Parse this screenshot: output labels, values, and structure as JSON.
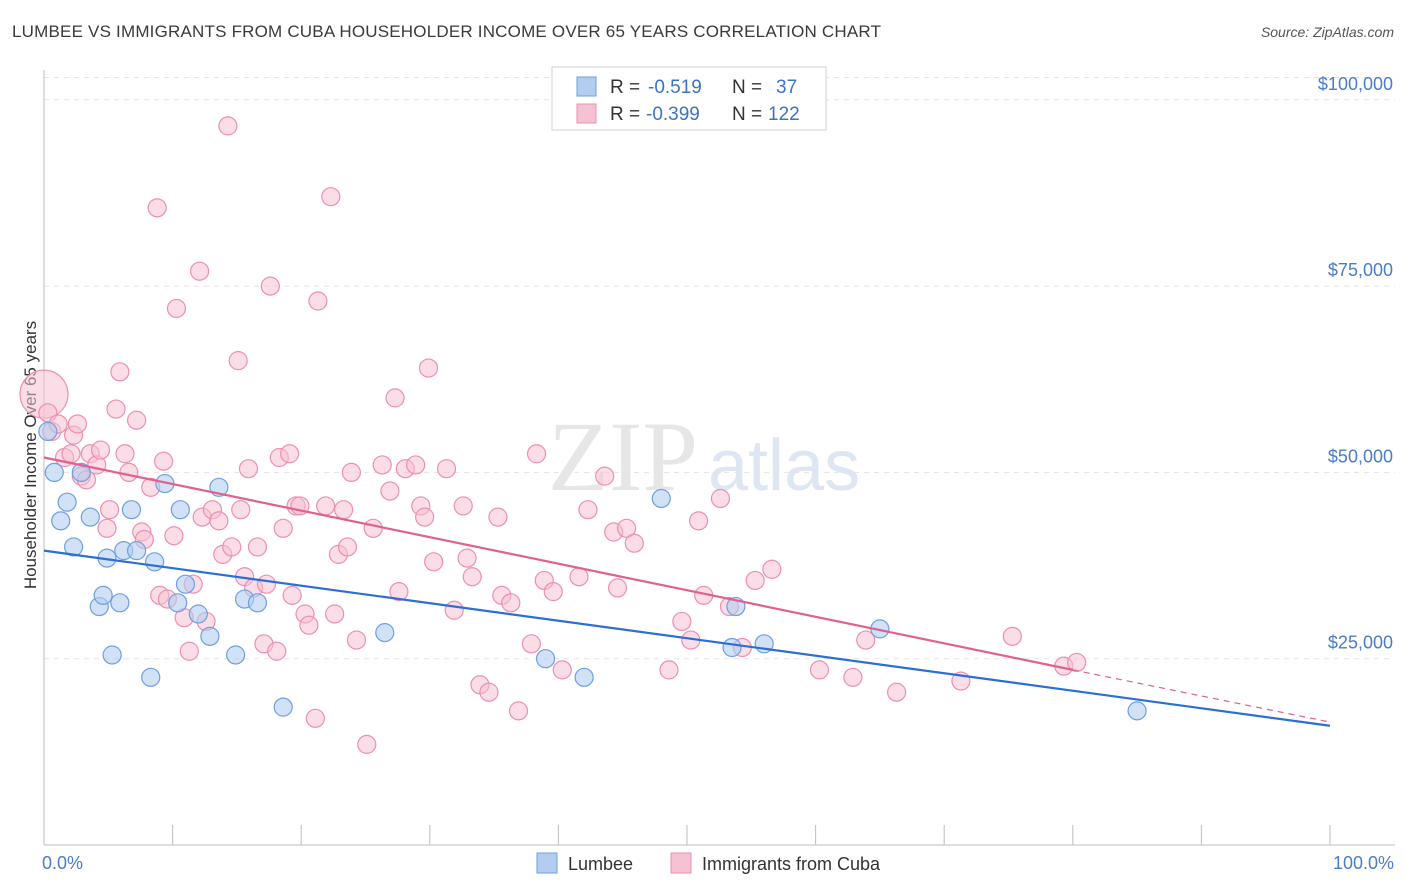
{
  "header": {
    "title": "LUMBEE VS IMMIGRANTS FROM CUBA HOUSEHOLDER INCOME OVER 65 YEARS CORRELATION CHART",
    "source": "Source: ZipAtlas.com"
  },
  "watermark": {
    "zip": "ZIP",
    "atlas": "atlas"
  },
  "legend": {
    "r_label": "R =",
    "n_label": "N =",
    "items": [
      {
        "r": "-0.519",
        "n": "37"
      },
      {
        "r": "-0.399",
        "n": "122"
      }
    ]
  },
  "chart_data": {
    "type": "scatter",
    "title": "LUMBEE VS IMMIGRANTS FROM CUBA HOUSEHOLDER INCOME OVER 65 YEARS CORRELATION CHART",
    "xlabel": "",
    "ylabel": "Householder Income Over 65 years",
    "xlim": [
      0,
      100
    ],
    "ylim": [
      0,
      104000
    ],
    "x_tick_labels": [
      "0.0%",
      "100.0%"
    ],
    "y_ticks": [
      25000,
      50000,
      75000,
      100000
    ],
    "y_tick_labels": [
      "$25,000",
      "$50,000",
      "$75,000",
      "$100,000"
    ],
    "grid": true,
    "legend_position": "top-center",
    "colors": {
      "lumbee_fill": "#b3cdf0",
      "lumbee_stroke": "#6f9fe0",
      "lumbee_line": "#2b6fd6",
      "cuba_fill": "#f6c1d2",
      "cuba_stroke": "#ec8fb0",
      "cuba_line": "#e0608f"
    },
    "series": [
      {
        "name": "Lumbee",
        "r": -0.519,
        "n": 37,
        "trend": {
          "x0": 0,
          "y0": 39500,
          "x1": 100,
          "y1": 16000
        },
        "points": [
          [
            0.3,
            55500
          ],
          [
            0.8,
            50000
          ],
          [
            1.3,
            43500
          ],
          [
            1.8,
            46000
          ],
          [
            2.3,
            40000
          ],
          [
            2.9,
            50000
          ],
          [
            3.6,
            44000
          ],
          [
            4.3,
            32000
          ],
          [
            4.6,
            33500
          ],
          [
            4.9,
            38500
          ],
          [
            5.3,
            25500
          ],
          [
            5.9,
            32500
          ],
          [
            6.2,
            39500
          ],
          [
            6.8,
            45000
          ],
          [
            7.2,
            39500
          ],
          [
            8.3,
            22500
          ],
          [
            8.6,
            38000
          ],
          [
            9.4,
            48500
          ],
          [
            10.4,
            32500
          ],
          [
            10.6,
            45000
          ],
          [
            11.0,
            35000
          ],
          [
            12.0,
            31000
          ],
          [
            12.9,
            28000
          ],
          [
            13.6,
            48000
          ],
          [
            14.9,
            25500
          ],
          [
            15.6,
            33000
          ],
          [
            16.6,
            32500
          ],
          [
            18.6,
            18500
          ],
          [
            26.5,
            28500
          ],
          [
            39.0,
            25000
          ],
          [
            42.0,
            22500
          ],
          [
            48.0,
            46500
          ],
          [
            53.5,
            26500
          ],
          [
            53.8,
            32000
          ],
          [
            56.0,
            27000
          ],
          [
            65.0,
            29000
          ],
          [
            85.0,
            18000
          ]
        ]
      },
      {
        "name": "Immigrants from Cuba",
        "r": -0.399,
        "n": 122,
        "trend": {
          "x0": 0,
          "y0": 52000,
          "x1": 80,
          "y1": 23500,
          "dash_x1": 100,
          "dash_y1": 16500
        },
        "points": [
          [
            0.0,
            60500
          ],
          [
            0.3,
            58000
          ],
          [
            0.6,
            55500
          ],
          [
            1.1,
            56500
          ],
          [
            1.6,
            52000
          ],
          [
            2.1,
            52500
          ],
          [
            2.3,
            55000
          ],
          [
            2.6,
            56500
          ],
          [
            2.9,
            49500
          ],
          [
            3.3,
            49000
          ],
          [
            3.6,
            52500
          ],
          [
            4.1,
            51000
          ],
          [
            4.4,
            53000
          ],
          [
            4.9,
            42500
          ],
          [
            5.1,
            45000
          ],
          [
            5.6,
            58500
          ],
          [
            5.9,
            63500
          ],
          [
            6.3,
            52500
          ],
          [
            6.6,
            50000
          ],
          [
            7.2,
            57000
          ],
          [
            7.6,
            42000
          ],
          [
            7.8,
            41000
          ],
          [
            8.3,
            48000
          ],
          [
            8.8,
            85500
          ],
          [
            9.0,
            33500
          ],
          [
            9.3,
            51500
          ],
          [
            9.6,
            33000
          ],
          [
            10.1,
            41500
          ],
          [
            10.3,
            72000
          ],
          [
            10.9,
            30500
          ],
          [
            11.3,
            26000
          ],
          [
            11.6,
            35000
          ],
          [
            12.1,
            77000
          ],
          [
            12.3,
            44000
          ],
          [
            12.6,
            30000
          ],
          [
            13.1,
            45000
          ],
          [
            13.6,
            43500
          ],
          [
            13.9,
            39000
          ],
          [
            14.3,
            96500
          ],
          [
            14.6,
            40000
          ],
          [
            15.1,
            65000
          ],
          [
            15.3,
            45000
          ],
          [
            15.6,
            36000
          ],
          [
            15.9,
            50500
          ],
          [
            16.3,
            34500
          ],
          [
            16.6,
            40000
          ],
          [
            17.1,
            27000
          ],
          [
            17.3,
            35000
          ],
          [
            17.6,
            75000
          ],
          [
            18.1,
            26000
          ],
          [
            18.3,
            52000
          ],
          [
            18.6,
            42500
          ],
          [
            19.1,
            52500
          ],
          [
            19.3,
            33500
          ],
          [
            19.6,
            45500
          ],
          [
            19.9,
            45500
          ],
          [
            20.3,
            31000
          ],
          [
            20.6,
            29500
          ],
          [
            21.1,
            17000
          ],
          [
            21.3,
            73000
          ],
          [
            21.9,
            45500
          ],
          [
            22.3,
            87000
          ],
          [
            22.6,
            31000
          ],
          [
            22.9,
            39000
          ],
          [
            23.3,
            45000
          ],
          [
            23.6,
            40000
          ],
          [
            23.9,
            50000
          ],
          [
            24.3,
            27500
          ],
          [
            25.1,
            13500
          ],
          [
            25.6,
            42500
          ],
          [
            26.3,
            51000
          ],
          [
            26.9,
            47500
          ],
          [
            27.3,
            60000
          ],
          [
            27.6,
            34000
          ],
          [
            28.1,
            50500
          ],
          [
            28.9,
            51000
          ],
          [
            29.3,
            45500
          ],
          [
            29.6,
            44000
          ],
          [
            29.9,
            64000
          ],
          [
            30.3,
            38000
          ],
          [
            31.3,
            50500
          ],
          [
            31.9,
            31500
          ],
          [
            32.6,
            45500
          ],
          [
            32.9,
            38500
          ],
          [
            33.3,
            36000
          ],
          [
            33.9,
            21500
          ],
          [
            34.6,
            20500
          ],
          [
            35.3,
            44000
          ],
          [
            35.6,
            33500
          ],
          [
            36.3,
            32500
          ],
          [
            36.9,
            18000
          ],
          [
            37.9,
            27000
          ],
          [
            38.3,
            52500
          ],
          [
            38.9,
            35500
          ],
          [
            39.6,
            34000
          ],
          [
            40.3,
            23500
          ],
          [
            41.6,
            36000
          ],
          [
            42.3,
            45000
          ],
          [
            43.6,
            49500
          ],
          [
            44.3,
            42000
          ],
          [
            44.6,
            34500
          ],
          [
            45.3,
            42500
          ],
          [
            45.9,
            40500
          ],
          [
            48.6,
            23500
          ],
          [
            49.6,
            30000
          ],
          [
            50.3,
            27500
          ],
          [
            50.9,
            43500
          ],
          [
            51.3,
            33500
          ],
          [
            52.6,
            46500
          ],
          [
            53.3,
            32000
          ],
          [
            54.3,
            26500
          ],
          [
            55.3,
            35500
          ],
          [
            56.6,
            37000
          ],
          [
            60.3,
            23500
          ],
          [
            62.9,
            22500
          ],
          [
            63.9,
            27500
          ],
          [
            66.3,
            20500
          ],
          [
            71.3,
            22000
          ],
          [
            75.3,
            28000
          ],
          [
            79.3,
            24000
          ],
          [
            80.3,
            24500
          ]
        ]
      }
    ],
    "bottom_legend": [
      "Lumbee",
      "Immigrants from Cuba"
    ]
  }
}
